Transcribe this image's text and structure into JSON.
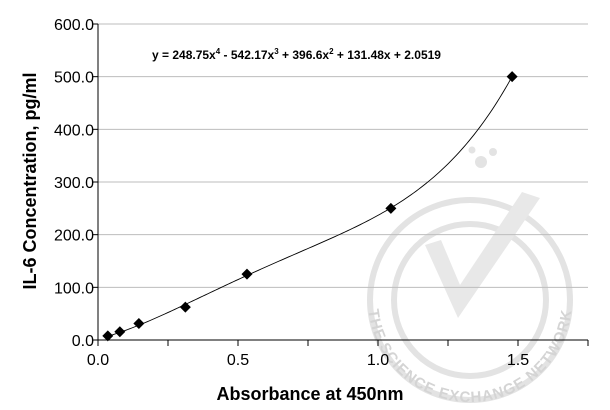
{
  "chart_data": {
    "type": "scatter",
    "title": "",
    "xlabel": "Absorbance at 450nm",
    "ylabel": "IL-6 Concentration, pg/ml",
    "xlim": [
      0,
      1.75
    ],
    "ylim": [
      0,
      600
    ],
    "x_ticks": [
      0.0,
      0.5,
      1.0,
      1.5
    ],
    "x_tick_labels": [
      "0.0",
      "0.5",
      "1.0",
      "1.5"
    ],
    "y_ticks": [
      0,
      100,
      200,
      300,
      400,
      500,
      600
    ],
    "y_tick_labels": [
      "0.0",
      "100.0",
      "200.0",
      "300.0",
      "400.0",
      "500.0",
      "600.0"
    ],
    "grid": "horizontal",
    "legend": "none",
    "series": [
      {
        "marker": "diamond",
        "color": "#000000",
        "points": [
          {
            "x": 0.035,
            "y": 7.8
          },
          {
            "x": 0.078,
            "y": 15.6
          },
          {
            "x": 0.146,
            "y": 31.3
          },
          {
            "x": 0.312,
            "y": 62.5
          },
          {
            "x": 0.532,
            "y": 125
          },
          {
            "x": 1.046,
            "y": 250
          },
          {
            "x": 1.479,
            "y": 500
          }
        ]
      }
    ],
    "trendline": {
      "type": "polynomial",
      "order": 4,
      "coefficients": [
        248.75,
        -542.17,
        396.6,
        131.48,
        2.0519
      ],
      "x_range": [
        0.03,
        1.48
      ]
    },
    "annotation": {
      "prefix": "y = 248.75x",
      "exp4": "4",
      "t2": " - 542.17x",
      "exp3": "3",
      "t3": " + 396.6x",
      "exp2": "2",
      "t4": " + 131.48x + 2.0519"
    },
    "watermark": {
      "text": "THE SCIENCE EXCHANGE NETWORK",
      "color": "#d4d4d4"
    }
  }
}
